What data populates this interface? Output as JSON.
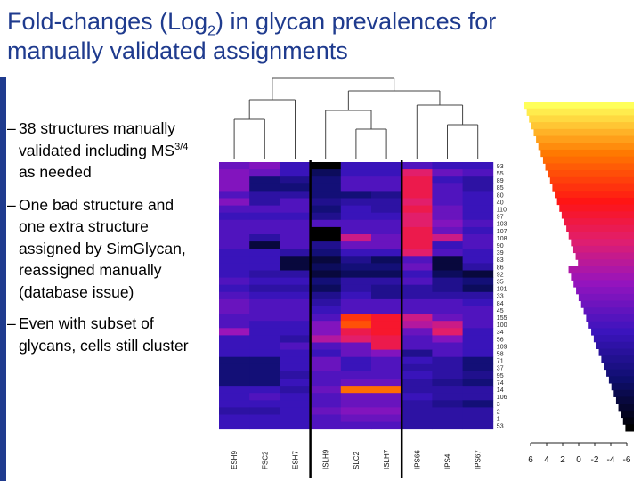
{
  "slide": {
    "title_line1_pre": "Fold-changes (Log",
    "title_sub": "2",
    "title_line1_post": ") in glycan prevalences for",
    "title_line2": "manually validated assignments",
    "bullets": [
      {
        "dash": "–",
        "text": "38 structures manually validated including MS",
        "sup": "3/4",
        "text_post": " as needed"
      },
      {
        "dash": "–",
        "text": "One bad structure and one extra structure assigned by SimGlycan, reassigned manually (database issue)"
      },
      {
        "dash": "–",
        "text": "Even with subset of glycans, cells still cluster"
      }
    ]
  },
  "colors": {
    "accent": "#1f3b8e",
    "gradient_high": "#ffff66",
    "gradient_mid": "#ff2200",
    "gradient_low": "#000000"
  },
  "chart_data": {
    "type": "heatmap",
    "columns": [
      "ESH9",
      "FSC2",
      "ESH7",
      "ISLH9",
      "SLC2",
      "ISLH7",
      "IPS66",
      "IPS4",
      "IPS67"
    ],
    "column_groups": [
      {
        "name": "ES",
        "columns": [
          "ESH9",
          "FSC2",
          "ESH7"
        ]
      },
      {
        "name": "ISLH",
        "columns": [
          "ISLH9",
          "SLC2",
          "ISLH7"
        ]
      },
      {
        "name": "IPS",
        "columns": [
          "IPS66",
          "IPS4",
          "IPS67"
        ]
      }
    ],
    "rows": [
      "93",
      "55",
      "89",
      "85",
      "80",
      "40",
      "110",
      "97",
      "103",
      "107",
      "108",
      "90",
      "39",
      "83",
      "86",
      "92",
      "35",
      "101",
      "33",
      "84",
      "45",
      "155",
      "100",
      "34",
      "56",
      "109",
      "58",
      "71",
      "37",
      "95",
      "74",
      "14",
      "106",
      "3",
      "2",
      "1",
      "53"
    ],
    "values": [
      [
        -1.5,
        -1.0,
        -2.5,
        -6.0,
        -2.5,
        -2.5,
        -2.0,
        -2.5,
        -2.5
      ],
      [
        -1.0,
        -1.5,
        -2.5,
        -4.5,
        -2.5,
        -2.5,
        1.0,
        -1.5,
        -2.0
      ],
      [
        -1.0,
        -4.0,
        -3.5,
        -4.0,
        -2.0,
        -2.0,
        1.5,
        -2.5,
        -3.0
      ],
      [
        -1.0,
        -4.0,
        -4.0,
        -4.0,
        -2.0,
        -2.0,
        1.5,
        -2.0,
        -3.0
      ],
      [
        -2.0,
        -3.0,
        -3.0,
        -4.0,
        -4.0,
        -3.5,
        1.5,
        -2.0,
        -2.5
      ],
      [
        -1.0,
        -3.0,
        -2.0,
        -3.5,
        -3.0,
        -3.0,
        1.0,
        -2.0,
        -2.5
      ],
      [
        -2.0,
        -2.0,
        -2.0,
        -4.0,
        -2.5,
        -3.0,
        1.5,
        -1.5,
        -2.5
      ],
      [
        -2.5,
        -2.5,
        -2.5,
        -3.5,
        -2.5,
        -2.5,
        1.0,
        -1.5,
        -2.5
      ],
      [
        -2.0,
        -2.0,
        -2.0,
        -2.0,
        -2.0,
        -2.0,
        1.0,
        -1.0,
        -2.0
      ],
      [
        -2.0,
        -2.0,
        -2.0,
        -6.0,
        -2.0,
        -2.0,
        1.5,
        -1.5,
        -2.5
      ],
      [
        -2.0,
        -3.0,
        -2.0,
        -6.0,
        0.5,
        -1.5,
        1.5,
        0.5,
        -2.0
      ],
      [
        -2.0,
        -5.0,
        -2.0,
        -3.5,
        -1.5,
        -1.5,
        1.5,
        -2.5,
        -2.0
      ],
      [
        -2.5,
        -2.5,
        -3.0,
        -4.0,
        -2.5,
        -2.5,
        1.0,
        -2.0,
        -2.5
      ],
      [
        -2.5,
        -2.5,
        -5.0,
        -5.0,
        -3.5,
        -4.5,
        -2.0,
        -5.0,
        -2.5
      ],
      [
        -2.5,
        -2.5,
        -5.0,
        -4.5,
        -4.0,
        -4.0,
        -1.5,
        -5.0,
        -3.0
      ],
      [
        -2.5,
        -3.0,
        -3.0,
        -5.0,
        -4.5,
        -4.5,
        -2.5,
        -4.5,
        -5.0
      ],
      [
        -2.0,
        -2.5,
        -2.5,
        -4.0,
        -3.0,
        -3.0,
        -2.0,
        -3.5,
        -4.0
      ],
      [
        -2.5,
        -3.0,
        -3.0,
        -4.5,
        -3.0,
        -3.5,
        -3.0,
        -3.5,
        -4.5
      ],
      [
        -2.0,
        -2.5,
        -2.5,
        -3.5,
        -2.5,
        -3.5,
        -3.0,
        -3.0,
        -3.0
      ],
      [
        -1.5,
        -2.0,
        -2.0,
        -3.0,
        -2.0,
        -2.0,
        -2.0,
        -2.0,
        -2.5
      ],
      [
        -1.5,
        -2.0,
        -2.0,
        -2.5,
        -2.0,
        -2.0,
        -2.0,
        -2.0,
        -2.0
      ],
      [
        -2.0,
        -2.0,
        -2.0,
        -2.0,
        3.0,
        2.0,
        0.5,
        -1.5,
        -2.0
      ],
      [
        -2.0,
        -2.5,
        -2.5,
        -1.0,
        3.5,
        2.0,
        0.0,
        0.5,
        -2.0
      ],
      [
        -0.5,
        -2.5,
        -2.5,
        -1.0,
        1.5,
        2.0,
        -1.5,
        1.0,
        -2.5
      ],
      [
        -2.5,
        -2.5,
        -3.0,
        0.0,
        1.0,
        1.5,
        -2.0,
        -1.0,
        -2.5
      ],
      [
        -2.5,
        -2.5,
        -2.0,
        -2.0,
        -1.5,
        1.5,
        -2.0,
        -2.0,
        -2.5
      ],
      [
        -2.5,
        -2.5,
        -2.5,
        -2.5,
        -1.5,
        -1.0,
        -3.5,
        -2.0,
        -2.5
      ],
      [
        -4.0,
        -4.0,
        -2.5,
        -1.5,
        -2.5,
        -2.0,
        -2.5,
        -3.0,
        -4.0
      ],
      [
        -4.0,
        -4.0,
        -2.5,
        -1.5,
        -2.5,
        -2.0,
        -3.0,
        -3.0,
        -4.0
      ],
      [
        -4.0,
        -4.0,
        -3.0,
        -2.0,
        -2.0,
        -2.0,
        -2.5,
        -3.0,
        -3.5
      ],
      [
        -4.0,
        -4.0,
        -2.5,
        -2.0,
        -1.5,
        -1.5,
        -3.0,
        -3.5,
        -4.0
      ],
      [
        -2.5,
        -2.5,
        -3.0,
        -1.5,
        4.0,
        4.0,
        -3.0,
        -3.0,
        -3.0
      ],
      [
        -2.5,
        -2.0,
        -2.5,
        -2.0,
        -1.5,
        -1.5,
        -2.5,
        -3.0,
        -3.0
      ],
      [
        -2.5,
        -2.5,
        -2.5,
        -2.0,
        -1.5,
        -1.5,
        -3.0,
        -3.5,
        -4.0
      ],
      [
        -3.0,
        -3.0,
        -2.5,
        -1.5,
        -1.0,
        -1.0,
        -3.0,
        -3.0,
        -3.0
      ],
      [
        -2.5,
        -2.5,
        -2.5,
        -2.0,
        -1.5,
        -1.5,
        -3.0,
        -3.0,
        -3.0
      ],
      [
        -2.5,
        -2.5,
        -2.5,
        -2.0,
        -2.0,
        -2.0,
        -3.0,
        -3.0,
        -3.0
      ]
    ],
    "scale_ticks": [
      "6",
      "4",
      "2",
      "0",
      "-2",
      "-4",
      "-6"
    ],
    "scale_range": [
      -6,
      6
    ],
    "highlighted_columns": [
      "ISLH9",
      "ISLH7"
    ],
    "dendrogram": "column clustering tree (three groups: ES, ISLH, IPS)"
  }
}
